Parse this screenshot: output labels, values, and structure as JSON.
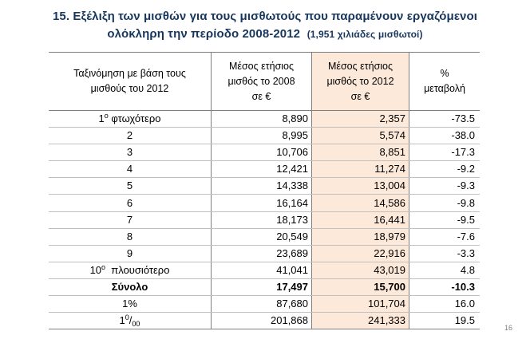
{
  "title": {
    "line1": "15. Εξέλιξη  των μισθών για τους μισθωτούς  που παραμένουν εργαζόμενοι",
    "line2": "ολόκληρη την περίοδο 2008-2012",
    "note": "(1,951 χιλιάδες μισθωτοί)"
  },
  "headers": {
    "col1": "Ταξινόμηση με βάση τους μισθούς του 2012",
    "col2": "Μέσος ετήσιος μισθός το 2008 σε €",
    "col3": "Μέσος ετήσιος μισθός το 2012 σε €",
    "col4": "% μεταβολή"
  },
  "rows": [
    {
      "label_num": "1",
      "label_sup": "ο",
      "label_text": "φτωχότερο",
      "v2008": "8,890",
      "v2012": "2,357",
      "change": "-73.5"
    },
    {
      "label": "2",
      "v2008": "8,995",
      "v2012": "5,574",
      "change": "-38.0"
    },
    {
      "label": "3",
      "v2008": "10,706",
      "v2012": "8,851",
      "change": "-17.3"
    },
    {
      "label": "4",
      "v2008": "12,421",
      "v2012": "11,274",
      "change": "-9.2"
    },
    {
      "label": "5",
      "v2008": "14,338",
      "v2012": "13,004",
      "change": "-9.3"
    },
    {
      "label": "6",
      "v2008": "16,164",
      "v2012": "14,586",
      "change": "-9.8"
    },
    {
      "label": "7",
      "v2008": "18,173",
      "v2012": "16,441",
      "change": "-9.5"
    },
    {
      "label": "8",
      "v2008": "20,549",
      "v2012": "18,979",
      "change": "-7.6"
    },
    {
      "label": "9",
      "v2008": "23,689",
      "v2012": "22,916",
      "change": "-3.3"
    },
    {
      "label_num": "10",
      "label_sup": "ο",
      "label_text": "πλουσιότερο",
      "v2008": "41,041",
      "v2012": "43,019",
      "change": "4.8"
    },
    {
      "label": "Σύνολο",
      "v2008": "17,497",
      "v2012": "15,700",
      "change": "-10.3"
    },
    {
      "label": "1%",
      "v2008": "87,680",
      "v2012": "101,704",
      "change": "16.0"
    },
    {
      "label_num": "1",
      "label_sup": "0",
      "label_sub": "00",
      "v2008": "201,868",
      "v2012": "241,333",
      "change": "19.5"
    }
  ],
  "page_number": "16"
}
